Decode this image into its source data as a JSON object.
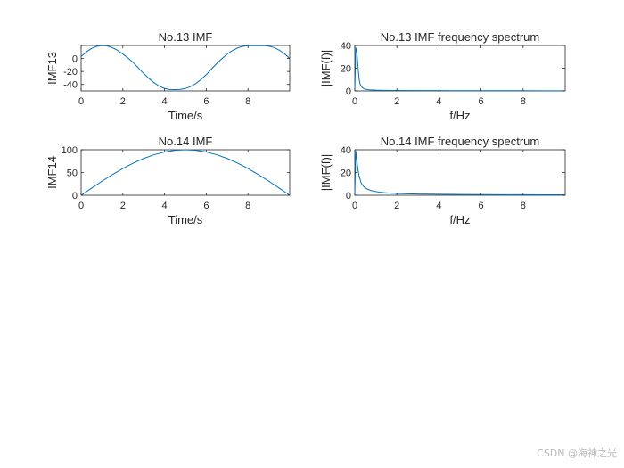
{
  "chart_data": [
    {
      "type": "line",
      "title": "No.13 IMF",
      "xlabel": "Time/s",
      "ylabel": "IMF13",
      "xlim": [
        0,
        10
      ],
      "ylim": [
        -50,
        20
      ],
      "xticks": [
        0,
        2,
        4,
        6,
        8
      ],
      "yticks": [
        -40,
        -20,
        0
      ],
      "series": [
        {
          "name": "IMF13",
          "x": [
            0,
            0.25,
            0.5,
            0.75,
            1,
            1.25,
            1.5,
            1.75,
            2,
            2.25,
            2.5,
            2.75,
            3,
            3.25,
            3.5,
            3.75,
            4,
            4.25,
            4.5,
            4.75,
            5,
            5.25,
            5.5,
            5.75,
            6,
            6.25,
            6.5,
            6.75,
            7,
            7.25,
            7.5,
            7.75,
            8,
            8.25,
            8.5,
            8.75,
            9,
            9.25,
            9.5,
            9.75,
            10
          ],
          "y": [
            3,
            10,
            15.5,
            18.6,
            19.9,
            19.3,
            16.6,
            12.5,
            6.8,
            0.6,
            -6.2,
            -14.8,
            -23.3,
            -30.7,
            -37.4,
            -42.6,
            -46.2,
            -47.8,
            -48,
            -47.6,
            -46.3,
            -43.2,
            -38.6,
            -32.4,
            -25,
            -16.2,
            -7.8,
            -0.2,
            6.6,
            12.1,
            16.2,
            18.7,
            19.7,
            19.8,
            19.7,
            19.6,
            19,
            16.8,
            12.8,
            7.2,
            0
          ]
        }
      ]
    },
    {
      "type": "line",
      "title": "No.13 IMF frequency spectrum",
      "xlabel": "f/Hz",
      "ylabel": "|IMF(f)|",
      "xlim": [
        0,
        10
      ],
      "ylim": [
        0,
        40
      ],
      "xticks": [
        0,
        2,
        4,
        6,
        8
      ],
      "yticks": [
        0,
        20,
        40
      ],
      "series": [
        {
          "name": "|IMF13(f)|",
          "x": [
            0,
            0.05,
            0.1,
            0.15,
            0.2,
            0.25,
            0.3,
            0.35,
            0.4,
            0.45,
            0.5,
            0.6,
            0.7,
            0.8,
            0.9,
            1,
            1.2,
            1.4,
            1.6,
            1.8,
            2,
            3,
            4,
            5,
            6,
            7,
            8,
            9,
            10
          ],
          "y": [
            0,
            38,
            34,
            22,
            11,
            6,
            4.5,
            3,
            2.4,
            1.8,
            1.6,
            1.2,
            1,
            0.9,
            0.8,
            0.7,
            0.6,
            0.5,
            0.45,
            0.4,
            0.35,
            0.3,
            0.25,
            0.2,
            0.2,
            0.15,
            0.15,
            0.1,
            0.1
          ]
        }
      ]
    },
    {
      "type": "line",
      "title": "No.14 IMF",
      "xlabel": "Time/s",
      "ylabel": "IMF14",
      "xlim": [
        0,
        10
      ],
      "ylim": [
        0,
        100
      ],
      "xticks": [
        0,
        2,
        4,
        6,
        8
      ],
      "yticks": [
        0,
        50,
        100
      ],
      "series": [
        {
          "name": "IMF14",
          "x": [
            0,
            0.5,
            1,
            1.5,
            2,
            2.5,
            3,
            3.5,
            4,
            4.5,
            5,
            5.5,
            6,
            6.5,
            7,
            7.5,
            8,
            8.5,
            9,
            9.5,
            10
          ],
          "y": [
            0,
            15.6,
            30.9,
            45.4,
            58.8,
            70.7,
            80.9,
            89.1,
            95.1,
            98.8,
            100,
            98.8,
            95.1,
            89.1,
            80.9,
            70.7,
            58.8,
            45.4,
            30.9,
            15.6,
            0
          ]
        }
      ]
    },
    {
      "type": "line",
      "title": "No.14 IMF frequency spectrum",
      "xlabel": "f/Hz",
      "ylabel": "|IMF(f)|",
      "xlim": [
        0,
        10
      ],
      "ylim": [
        0,
        40
      ],
      "xticks": [
        0,
        2,
        4,
        6,
        8
      ],
      "yticks": [
        0,
        20,
        40
      ],
      "series": [
        {
          "name": "|IMF14(f)|",
          "x": [
            0,
            0.05,
            0.1,
            0.15,
            0.2,
            0.25,
            0.3,
            0.35,
            0.4,
            0.45,
            0.5,
            0.6,
            0.7,
            0.8,
            0.9,
            1,
            1.2,
            1.4,
            1.6,
            1.8,
            2,
            2.5,
            3,
            3.5,
            4,
            5,
            6,
            7,
            8,
            9,
            10
          ],
          "y": [
            0,
            39,
            30,
            23,
            17,
            14,
            11,
            9.5,
            8.2,
            7.2,
            6.5,
            5.4,
            4.6,
            4,
            3.6,
            3.2,
            2.7,
            2.3,
            2,
            1.8,
            1.6,
            1.3,
            1.1,
            1,
            0.9,
            0.7,
            0.6,
            0.5,
            0.45,
            0.4,
            0.35
          ]
        }
      ]
    }
  ],
  "watermark": "CSDN @海神之光",
  "colors": {
    "series": "#0072BD",
    "axes": "#262626",
    "background": "#ffffff"
  }
}
